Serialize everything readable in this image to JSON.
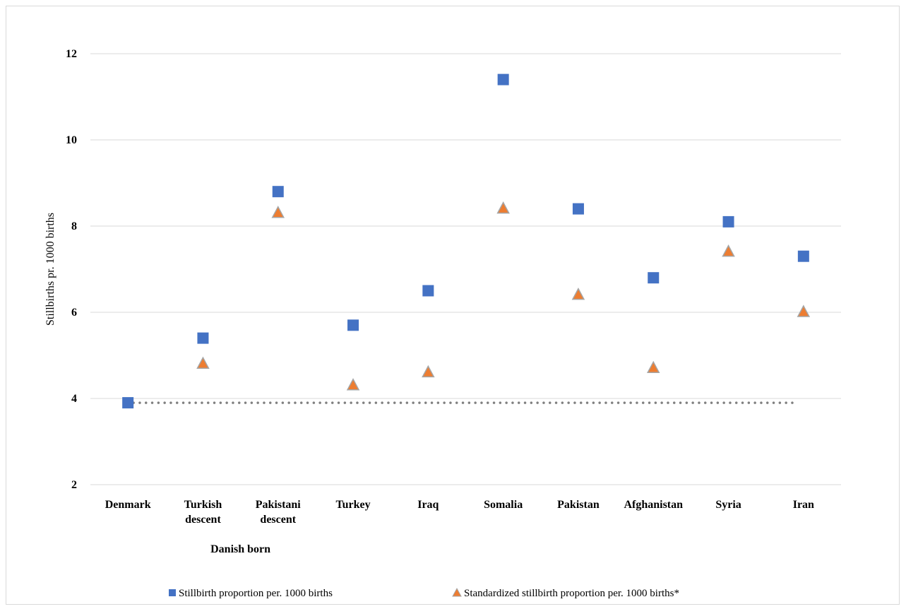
{
  "chart_data": {
    "type": "scatter",
    "title": "",
    "xlabel": "",
    "ylabel": "Stillbirths pr. 1000 births",
    "ylim": [
      2,
      12
    ],
    "yticks": [
      2,
      4,
      6,
      8,
      10,
      12
    ],
    "grid": true,
    "legend_position": "bottom",
    "categories": [
      [
        "Denmark"
      ],
      [
        "Turkish",
        "descent"
      ],
      [
        "Pakistani",
        "descent"
      ],
      [
        "Turkey"
      ],
      [
        "Iraq"
      ],
      [
        "Somalia"
      ],
      [
        "Pakistan"
      ],
      [
        "Afghanistan"
      ],
      [
        "Syria"
      ],
      [
        "Iran"
      ]
    ],
    "category_group_label": "Danish born",
    "reference_line": {
      "y": 3.9,
      "style": "dotted",
      "color": "#7f7f7f"
    },
    "series": [
      {
        "name": "Stillbirth proportion per. 1000 births",
        "marker": "square",
        "color": "#4472c4",
        "values": [
          3.9,
          5.4,
          8.8,
          5.7,
          6.5,
          11.4,
          8.4,
          6.8,
          8.1,
          7.3
        ]
      },
      {
        "name": "Standardized stillbirth proportion per. 1000 births*",
        "marker": "triangle",
        "color": "#ed7d31",
        "edge_color": "#a5a5a5",
        "values": [
          null,
          4.8,
          8.3,
          4.3,
          4.6,
          8.4,
          6.4,
          4.7,
          7.4,
          6.0
        ]
      }
    ]
  }
}
